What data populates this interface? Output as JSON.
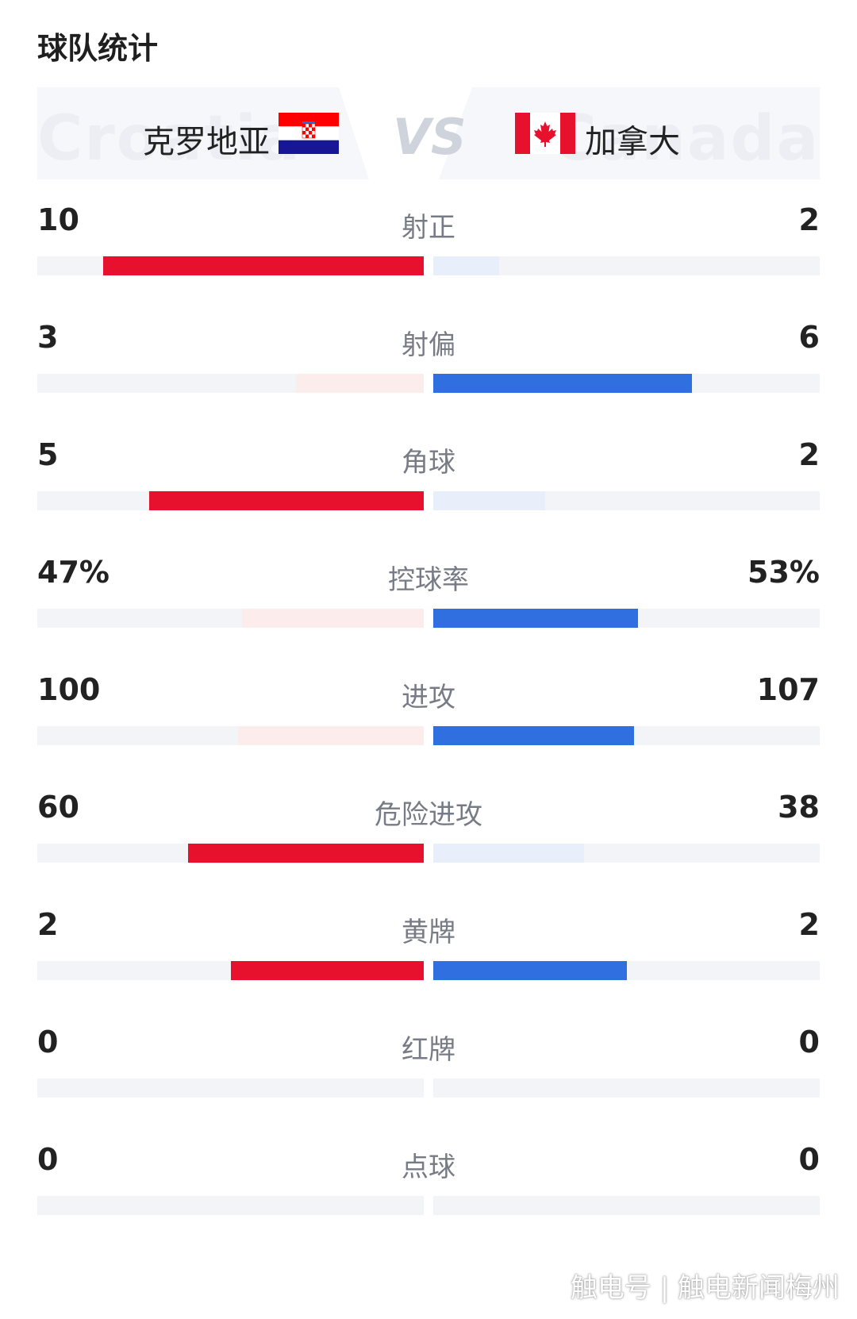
{
  "section_title": "球队统计",
  "home_team": {
    "name": "克罗地亚",
    "ghost_name": "Croatia",
    "flag": "croatia-flag",
    "color": "#e8112d"
  },
  "away_team": {
    "name": "加拿大",
    "ghost_name": "Canada",
    "flag": "canada-flag",
    "color": "#2f6fe0"
  },
  "vs_label": "VS",
  "stats": [
    {
      "label": "射正",
      "home": "10",
      "away": "2",
      "home_share": 0.83,
      "away_share": 0.17,
      "leader": "home"
    },
    {
      "label": "射偏",
      "home": "3",
      "away": "6",
      "home_share": 0.33,
      "away_share": 0.67,
      "leader": "away"
    },
    {
      "label": "角球",
      "home": "5",
      "away": "2",
      "home_share": 0.71,
      "away_share": 0.29,
      "leader": "home"
    },
    {
      "label": "控球率",
      "home": "47%",
      "away": "53%",
      "home_share": 0.47,
      "away_share": 0.53,
      "leader": "away"
    },
    {
      "label": "进攻",
      "home": "100",
      "away": "107",
      "home_share": 0.48,
      "away_share": 0.52,
      "leader": "away"
    },
    {
      "label": "危险进攻",
      "home": "60",
      "away": "38",
      "home_share": 0.61,
      "away_share": 0.39,
      "leader": "home"
    },
    {
      "label": "黄牌",
      "home": "2",
      "away": "2",
      "home_share": 0.5,
      "away_share": 0.5,
      "leader": "both"
    },
    {
      "label": "红牌",
      "home": "0",
      "away": "0",
      "home_share": 0,
      "away_share": 0,
      "leader": "none"
    },
    {
      "label": "点球",
      "home": "0",
      "away": "0",
      "home_share": 0,
      "away_share": 0,
      "leader": "none"
    }
  ],
  "watermark": "触电号 | 触电新闻梅州"
}
